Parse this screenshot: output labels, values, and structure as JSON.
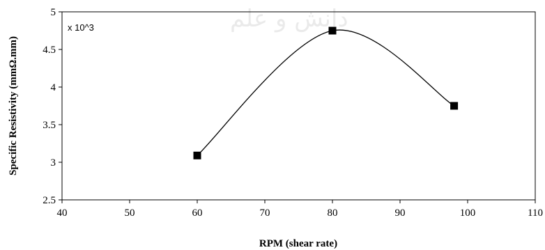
{
  "chart_data": {
    "type": "scatter",
    "x": [
      60,
      80,
      98
    ],
    "y": [
      3.09,
      4.75,
      3.75
    ],
    "series": [
      {
        "values": [
          3.09,
          4.75,
          3.75
        ],
        "color": "#000000",
        "marker": "square",
        "smooth_line": true
      }
    ],
    "xlabel": "RPM (shear rate)",
    "ylabel": "Specific Resistivity (mmΩ.mm)",
    "xlim": [
      40,
      110
    ],
    "ylim": [
      2.5,
      5
    ],
    "xticks": [
      "40",
      "50",
      "60",
      "70",
      "80",
      "90",
      "100",
      "110"
    ],
    "yticks": [
      "2.5",
      "3",
      "3.5",
      "4",
      "4.5",
      "5"
    ],
    "annotation": "x 10^3",
    "grid": false,
    "legend": "none"
  }
}
